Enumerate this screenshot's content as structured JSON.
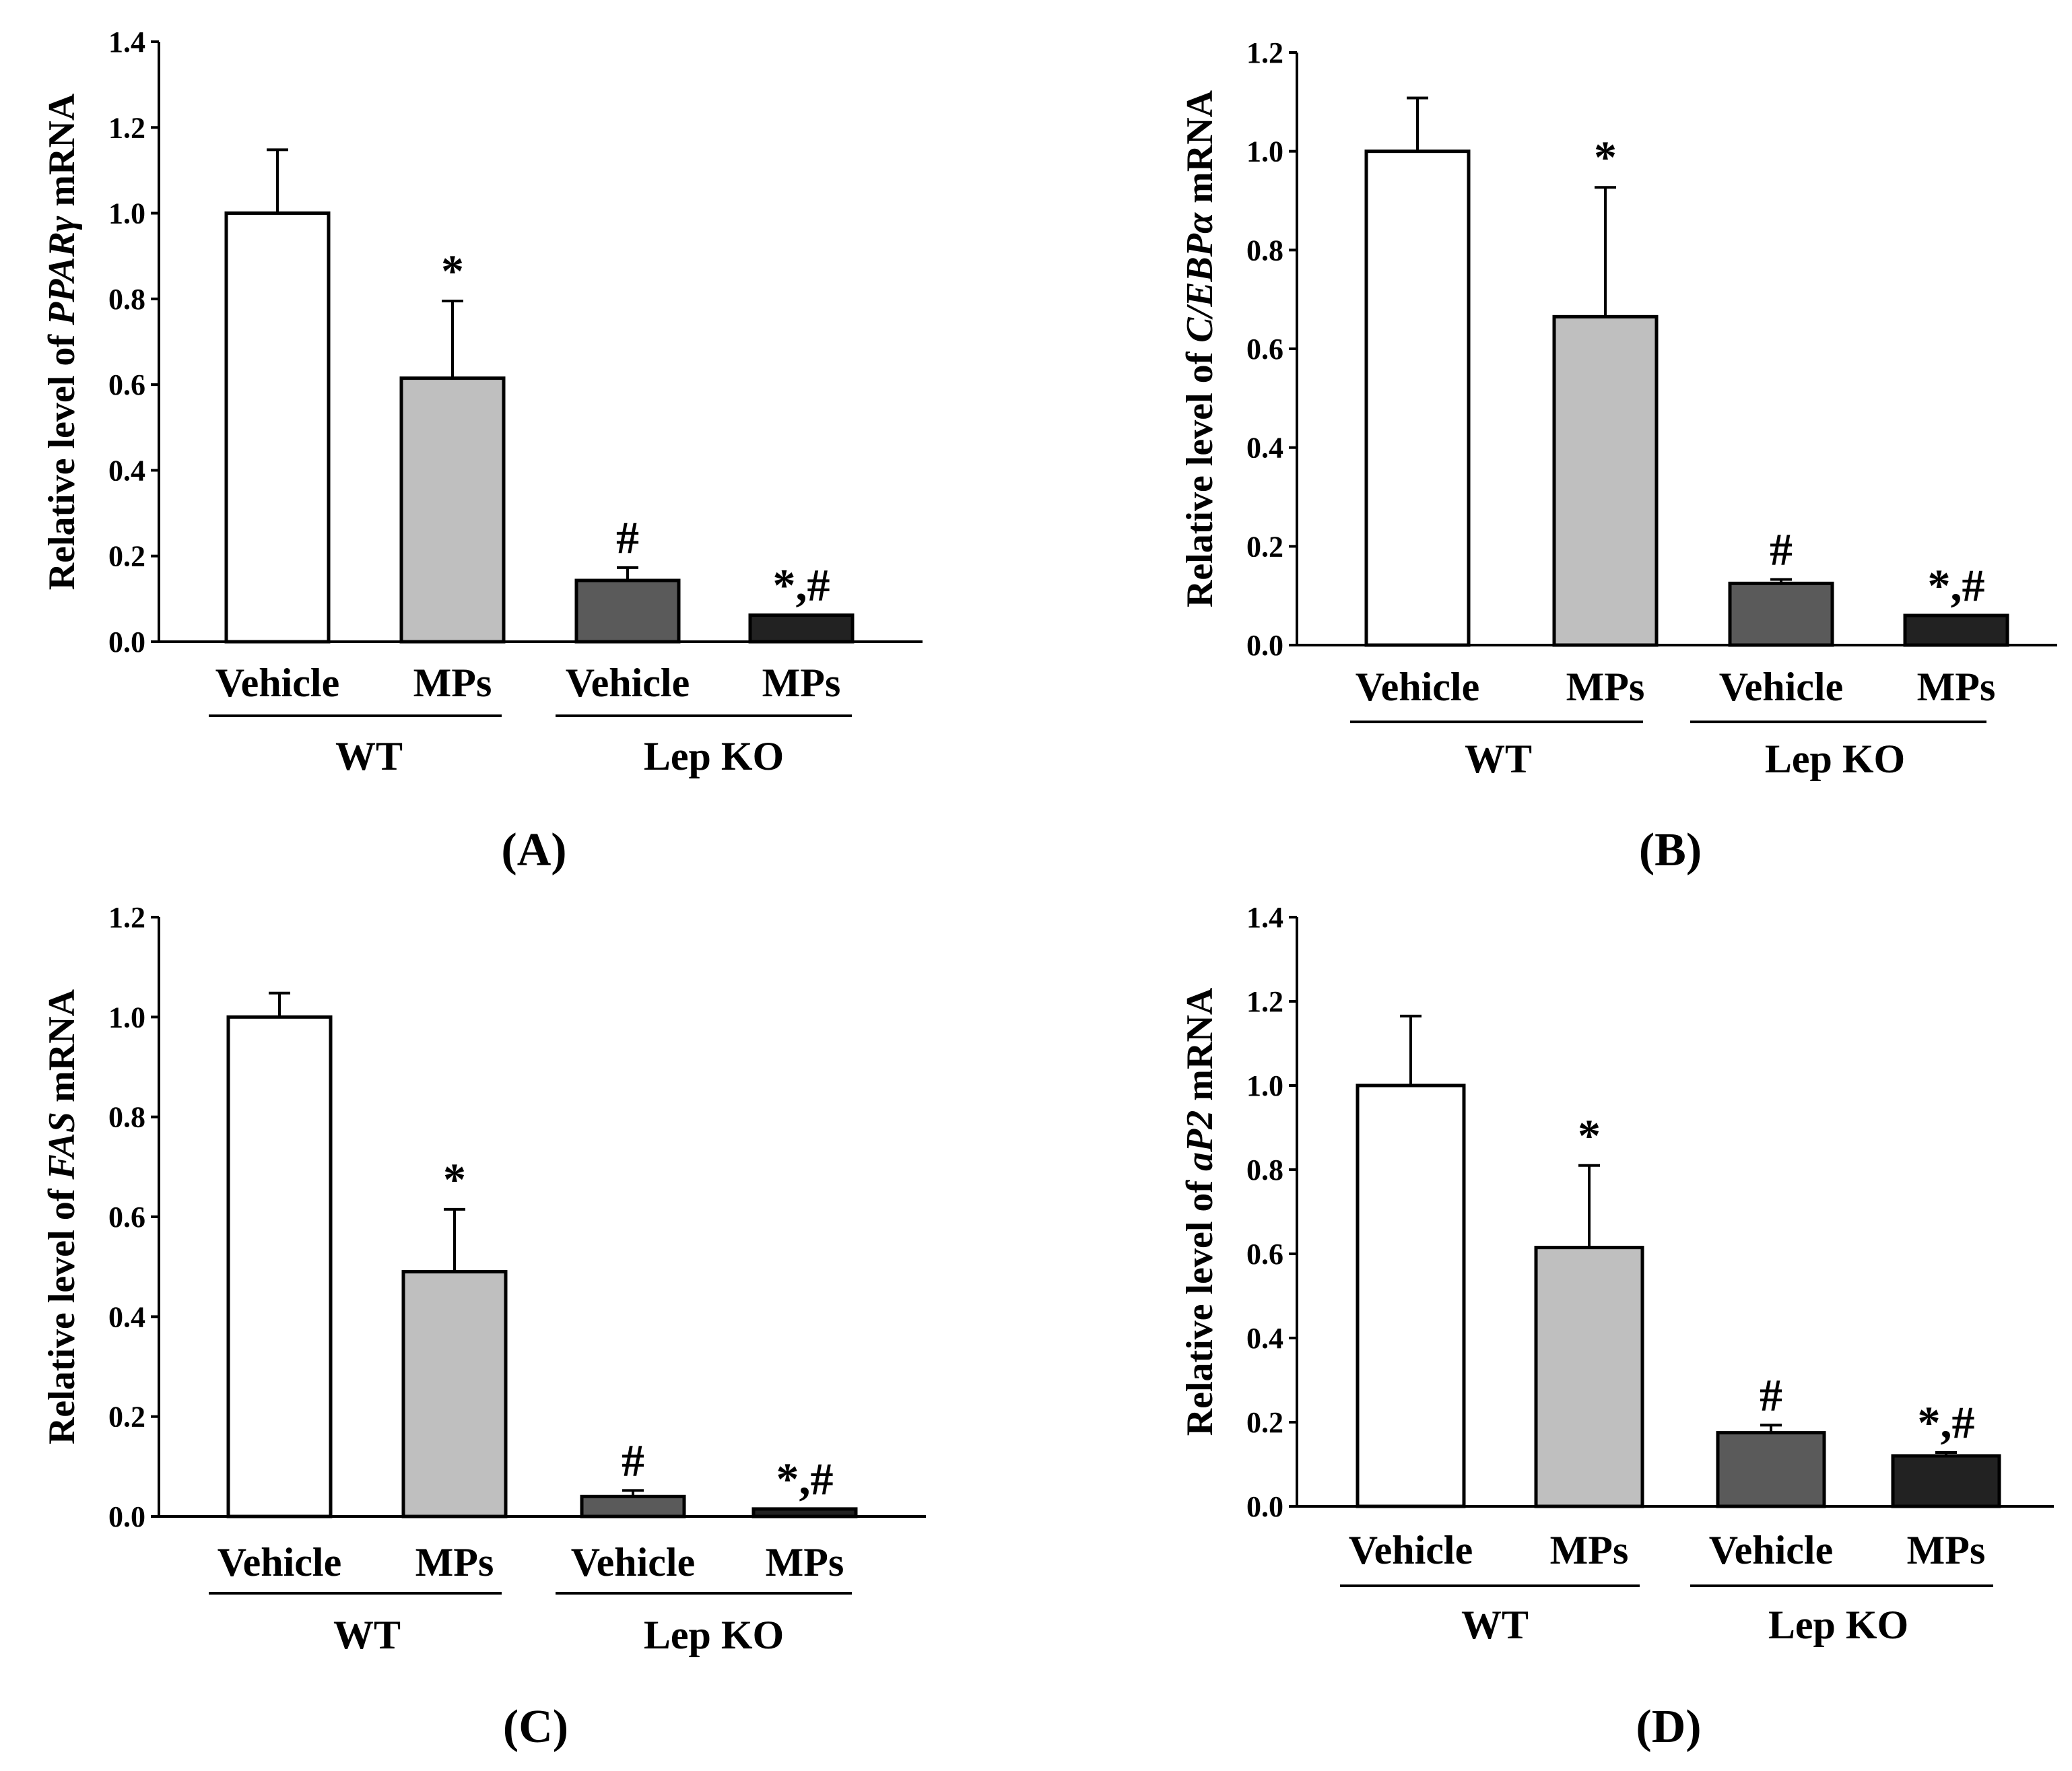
{
  "chart_data": [
    {
      "type": "bar",
      "panel": "A",
      "panel_label": "A",
      "ylabel_prefix": "Relative level of ",
      "ylabel_gene": "PPARγ",
      "ylabel_suffix": " mRNA",
      "ylim": [
        0,
        1.4
      ],
      "yticks": [
        "0.0",
        "0.2",
        "0.4",
        "0.6",
        "0.8",
        "1.0",
        "1.2",
        "1.4"
      ],
      "tick_values": [
        0,
        0.2,
        0.4,
        0.6,
        0.8,
        1.0,
        1.2,
        1.4
      ],
      "categories": [
        "Vehicle",
        "MPs",
        "Vehicle",
        "MPs"
      ],
      "groups": [
        {
          "label": "WT"
        },
        {
          "label": "Lep KO"
        }
      ],
      "values": [
        1.0,
        0.615,
        0.143,
        0.062
      ],
      "errors": [
        0.148,
        0.18,
        0.03,
        0.0
      ],
      "annotations": [
        "",
        "*",
        "#",
        "*,#"
      ],
      "colors": [
        "#ffffff",
        "#bfbfbf",
        "#5a5a5a",
        "#222222"
      ]
    },
    {
      "type": "bar",
      "panel": "B",
      "panel_label": "B",
      "ylabel_prefix": "Relative level of ",
      "ylabel_gene": "C/EBPα",
      "ylabel_suffix": " mRNA",
      "ylim": [
        0,
        1.2
      ],
      "yticks": [
        "0.0",
        "0.2",
        "0.4",
        "0.6",
        "0.8",
        "1.0",
        "1.2"
      ],
      "tick_values": [
        0,
        0.2,
        0.4,
        0.6,
        0.8,
        1.0,
        1.2
      ],
      "categories": [
        "Vehicle",
        "MPs",
        "Vehicle",
        "MPs"
      ],
      "groups": [
        {
          "label": "WT"
        },
        {
          "label": "Lep KO"
        }
      ],
      "values": [
        1.0,
        0.665,
        0.125,
        0.06
      ],
      "errors": [
        0.108,
        0.262,
        0.008,
        0.0
      ],
      "annotations": [
        "",
        "*",
        "#",
        "*,#"
      ],
      "colors": [
        "#ffffff",
        "#bfbfbf",
        "#5a5a5a",
        "#222222"
      ]
    },
    {
      "type": "bar",
      "panel": "C",
      "panel_label": "C",
      "ylabel_prefix": "Relative level of ",
      "ylabel_gene": "FAS",
      "ylabel_suffix": " mRNA",
      "ylim": [
        0,
        1.2
      ],
      "yticks": [
        "0.0",
        "0.2",
        "0.4",
        "0.6",
        "0.8",
        "1.0",
        "1.2"
      ],
      "tick_values": [
        0,
        0.2,
        0.4,
        0.6,
        0.8,
        1.0,
        1.2
      ],
      "categories": [
        "Vehicle",
        "MPs",
        "Vehicle",
        "MPs"
      ],
      "groups": [
        {
          "label": "WT"
        },
        {
          "label": "Lep KO"
        }
      ],
      "values": [
        1.0,
        0.49,
        0.04,
        0.015
      ],
      "errors": [
        0.048,
        0.125,
        0.012,
        0.0
      ],
      "annotations": [
        "",
        "*",
        "#",
        "*,#"
      ],
      "colors": [
        "#ffffff",
        "#bfbfbf",
        "#5a5a5a",
        "#222222"
      ]
    },
    {
      "type": "bar",
      "panel": "D",
      "panel_label": "D",
      "ylabel_prefix": "Relative level of ",
      "ylabel_gene": "aP2",
      "ylabel_suffix": " mRNA",
      "ylim": [
        0,
        1.4
      ],
      "yticks": [
        "0.0",
        "0.2",
        "0.4",
        "0.6",
        "0.8",
        "1.0",
        "1.2",
        "1.4"
      ],
      "tick_values": [
        0,
        0.2,
        0.4,
        0.6,
        0.8,
        1.0,
        1.2,
        1.4
      ],
      "categories": [
        "Vehicle",
        "MPs",
        "Vehicle",
        "MPs"
      ],
      "groups": [
        {
          "label": "WT"
        },
        {
          "label": "Lep KO"
        }
      ],
      "values": [
        1.0,
        0.615,
        0.175,
        0.12
      ],
      "errors": [
        0.165,
        0.195,
        0.018,
        0.008
      ],
      "annotations": [
        "",
        "*",
        "#",
        "*,#"
      ],
      "colors": [
        "#ffffff",
        "#bfbfbf",
        "#5a5a5a",
        "#222222"
      ]
    }
  ]
}
